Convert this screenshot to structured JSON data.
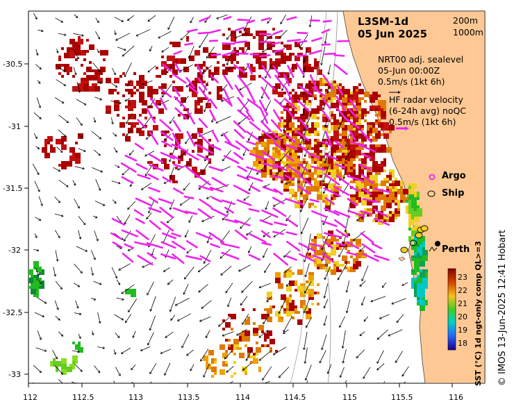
{
  "title": "L3SM-1d",
  "date": "05 Jun 2025",
  "depth_legend": [
    "200m",
    "1000m"
  ],
  "sealevel_note": {
    "line1": "NRT00 adj. sealevel",
    "line2": "05-Jun 00:00Z",
    "line3": "0.5m/s (1kt 6h)"
  },
  "hf_note": {
    "line1": "HF radar velocity",
    "line2": "(6-24h avg) noQC",
    "line3": "0.5m/s (1kt 6h)"
  },
  "legend_items": {
    "argo": "Argo",
    "ship": "Ship"
  },
  "place_label": "Perth",
  "x_ticks": [
    "112",
    "112.5",
    "113",
    "113.5",
    "114",
    "114.5",
    "115",
    "115.5",
    "116"
  ],
  "y_ticks": [
    "-30.5",
    "-31",
    "-31.5",
    "-32",
    "-32.5",
    "-33"
  ],
  "colorbar": {
    "label": "SST (°C) 1d ngt-only comp QL>=3",
    "ticks": [
      "23",
      "22",
      "21",
      "20",
      "19",
      "18"
    ],
    "min": 17.5,
    "max": 23.5
  },
  "credit": "© IMOS 13-Jun-2025 12:41 Hobart",
  "colors": {
    "land": "#fdc894",
    "hf_vectors": "#ee22ee",
    "sst_warm": "#aa0000",
    "sst_orange": "#e07a00",
    "sst_yellow": "#f0d020",
    "sst_green": "#22bb22",
    "sst_cyan": "#00c8c8"
  }
}
